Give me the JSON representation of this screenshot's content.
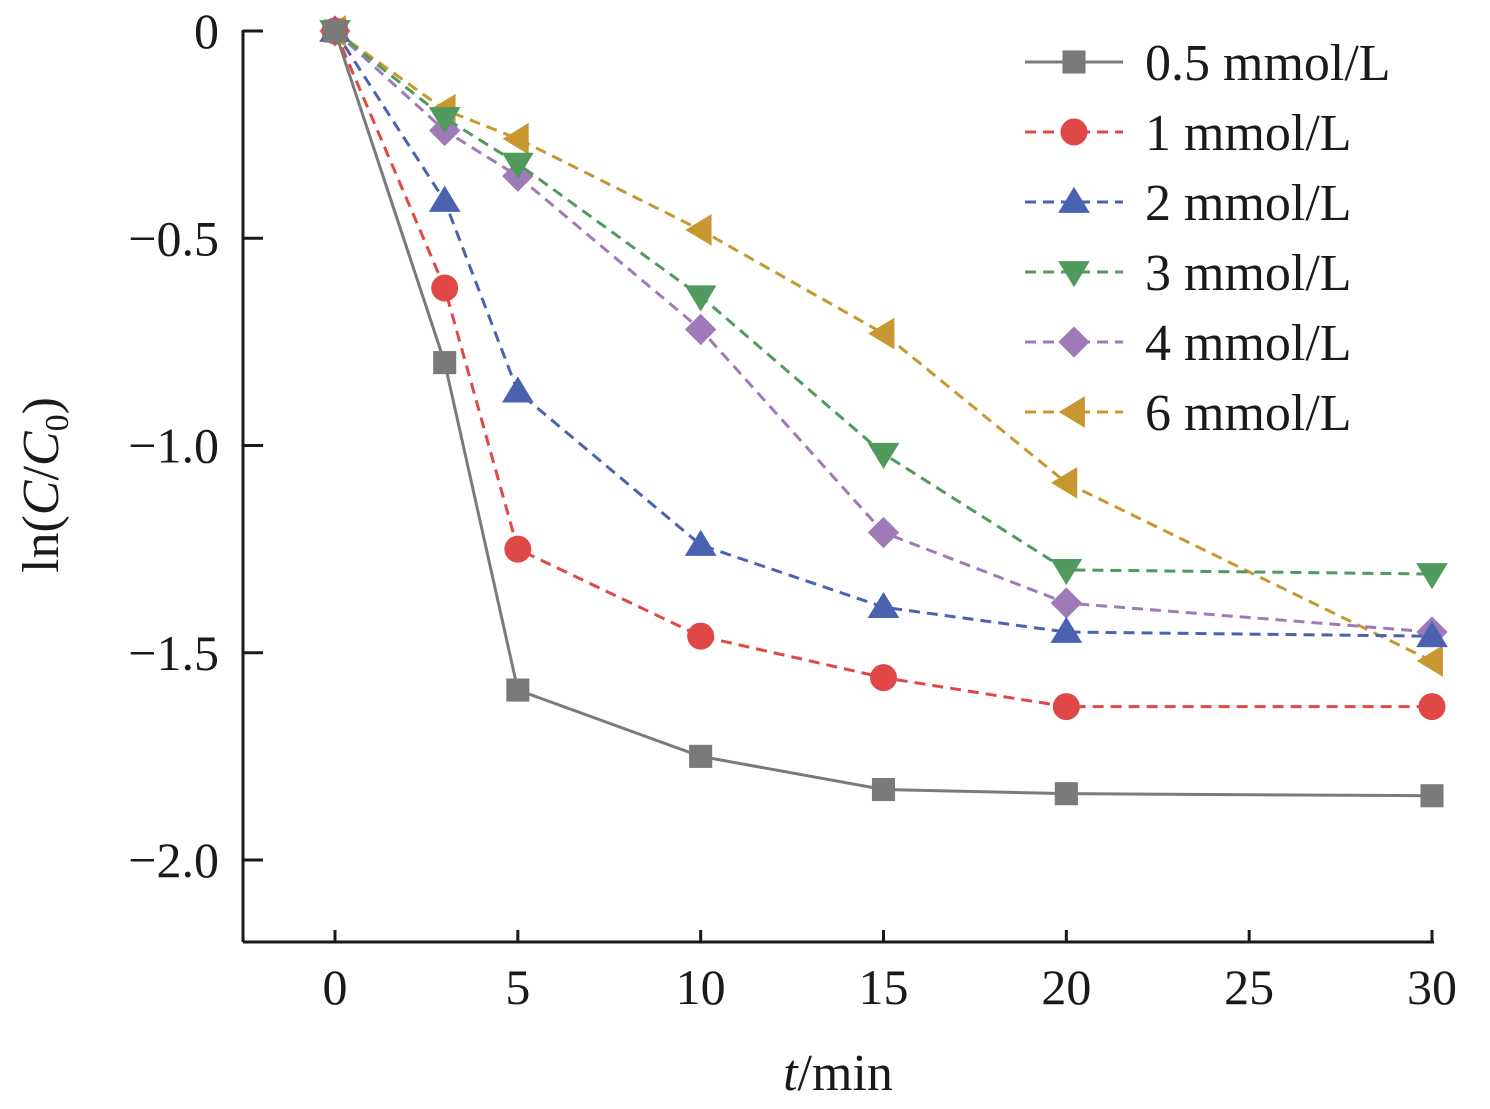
{
  "chart_data": {
    "type": "line",
    "xlabel_italic": "t",
    "xlabel_rest": "/min",
    "ylabel_parts": {
      "prefix": "ln(",
      "c": "C",
      "slash": "/",
      "c0": "C",
      "sub": "0",
      "suffix": ")"
    },
    "xlim": [
      -2.5,
      30
    ],
    "ylim": [
      -2.2,
      0
    ],
    "xticks": [
      0,
      5,
      10,
      15,
      20,
      25,
      30
    ],
    "xtick_labels": [
      "0",
      "5",
      "10",
      "15",
      "20",
      "25",
      "30"
    ],
    "yticks": [
      0,
      -0.5,
      -1.0,
      -1.5,
      -2.0
    ],
    "ytick_labels": [
      "0",
      "−0.5",
      "−1.0",
      "−1.5",
      "−2.0"
    ],
    "legend_position": "top-right",
    "x": [
      0,
      3,
      5,
      10,
      15,
      20,
      30
    ],
    "series": [
      {
        "name": "0.5 mmol/L",
        "color": "#7a7a7a",
        "marker": "square",
        "dash": "solid",
        "values": [
          0,
          -0.8,
          -1.59,
          -1.75,
          -1.83,
          -1.84,
          -1.845
        ]
      },
      {
        "name": "1 mmol/L",
        "color": "#e04848",
        "marker": "circle",
        "dash": "dashed",
        "values": [
          0,
          -0.62,
          -1.25,
          -1.46,
          -1.56,
          -1.63,
          -1.63
        ]
      },
      {
        "name": "2 mmol/L",
        "color": "#4a62b0",
        "marker": "triangle-up",
        "dash": "dashed",
        "values": [
          0,
          -0.41,
          -0.87,
          -1.24,
          -1.39,
          -1.45,
          -1.46
        ]
      },
      {
        "name": "3 mmol/L",
        "color": "#4f9a5c",
        "marker": "triangle-down",
        "dash": "dashed",
        "values": [
          0,
          -0.21,
          -0.32,
          -0.64,
          -1.02,
          -1.3,
          -1.31
        ]
      },
      {
        "name": "4 mmol/L",
        "color": "#a07ab8",
        "marker": "diamond",
        "dash": "dashed",
        "values": [
          0,
          -0.24,
          -0.35,
          -0.72,
          -1.21,
          -1.38,
          -1.45
        ]
      },
      {
        "name": "6 mmol/L",
        "color": "#c9972f",
        "marker": "triangle-left",
        "dash": "dashed",
        "values": [
          0,
          -0.19,
          -0.26,
          -0.48,
          -0.73,
          -1.09,
          -1.52
        ]
      }
    ]
  }
}
